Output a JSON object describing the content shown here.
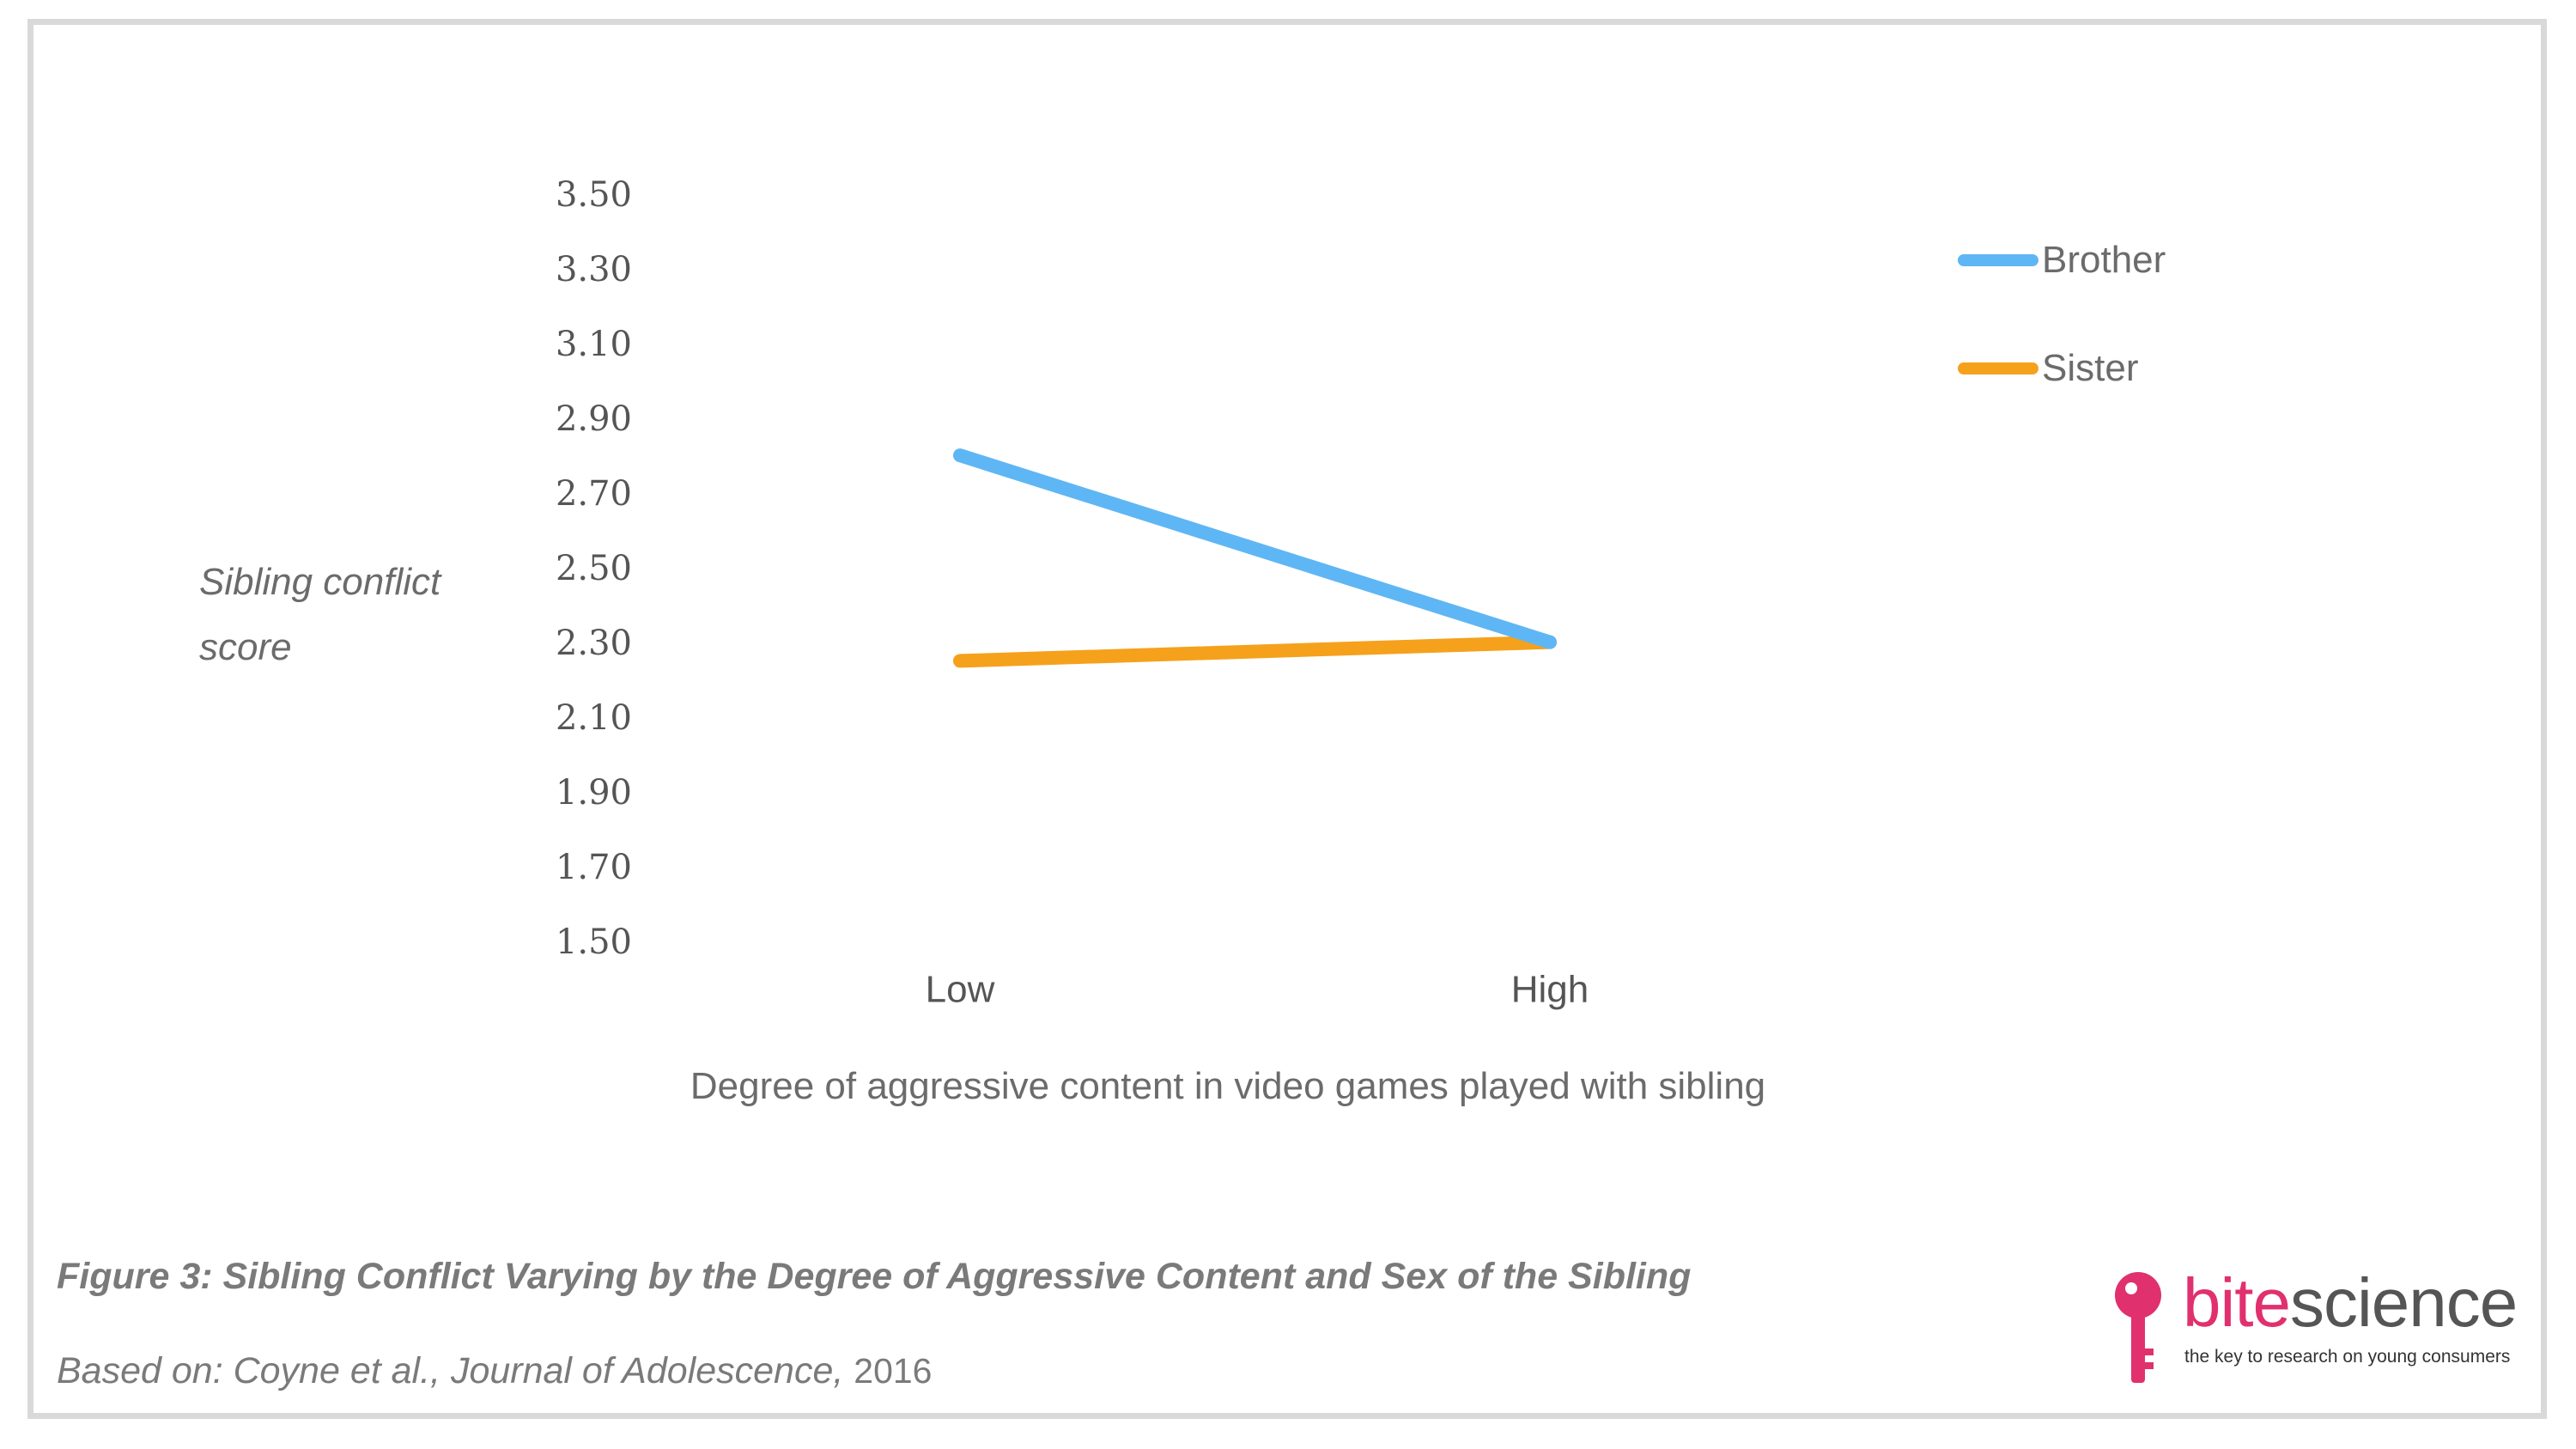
{
  "chart_data": {
    "type": "line",
    "categories": [
      "Low",
      "High"
    ],
    "series": [
      {
        "name": "Brother",
        "values": [
          2.81,
          2.31
        ],
        "color": "#5fb6f4"
      },
      {
        "name": "Sister",
        "values": [
          2.26,
          2.31
        ],
        "color": "#f5a11c"
      }
    ],
    "yticks": [
      "3.50",
      "3.30",
      "3.10",
      "2.90",
      "2.70",
      "2.50",
      "2.30",
      "2.10",
      "1.90",
      "1.70",
      "1.50"
    ],
    "ylim": [
      1.5,
      3.5
    ],
    "ylabel": "Sibling conflict score",
    "xlabel": "Degree of aggressive content in video games played with sibling",
    "grid": false,
    "legend": "top-right"
  },
  "caption": "Figure 3: Sibling Conflict Varying by the Degree of Aggressive Content and Sex of the Sibling",
  "source": {
    "text": "Based on: Coyne et al., Journal of Adolescence,",
    "year": "2016"
  },
  "logo": {
    "word_bite": "bite",
    "word_science": "science",
    "tagline": "the key to research on young consumers",
    "key_color": "#e0306e",
    "icon": "key-icon"
  }
}
